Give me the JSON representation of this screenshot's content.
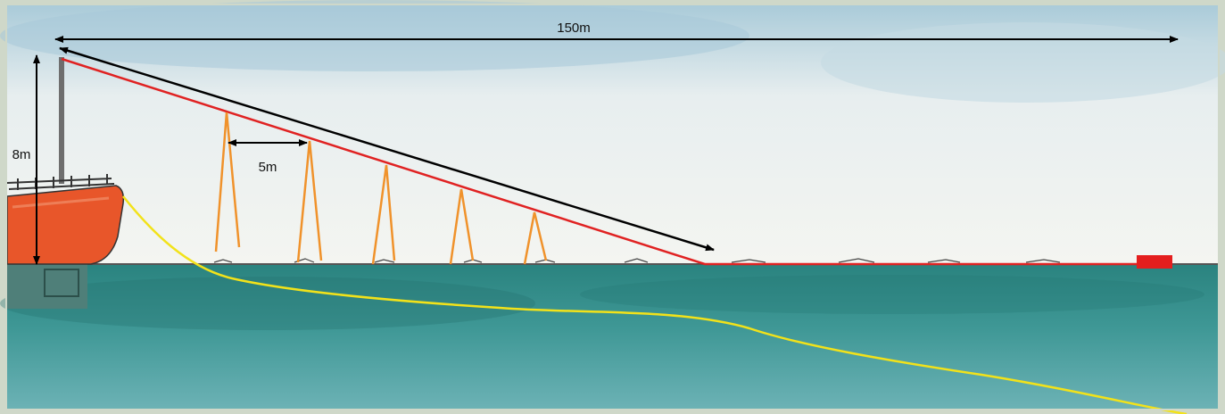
{
  "labels": {
    "total_length": "150m",
    "mast_height": "8m",
    "streamer_spacing": "5m"
  },
  "colors": {
    "frame": "#cfd8c9",
    "sky_top": "#b7d2df",
    "sky_bottom": "#f3f5f1",
    "sea_top": "#2f8a86",
    "sea_bottom": "#63aeb0",
    "line_main": "#e02222",
    "streamer": "#f0922b",
    "tow_line": "#f2e21a",
    "hull": "#e8562a",
    "buoy": "#e41e1e",
    "dimension": "#000000"
  },
  "icons": [
    "boat-hull",
    "mast",
    "buoy",
    "streamer-legs",
    "dimension-arrows"
  ]
}
